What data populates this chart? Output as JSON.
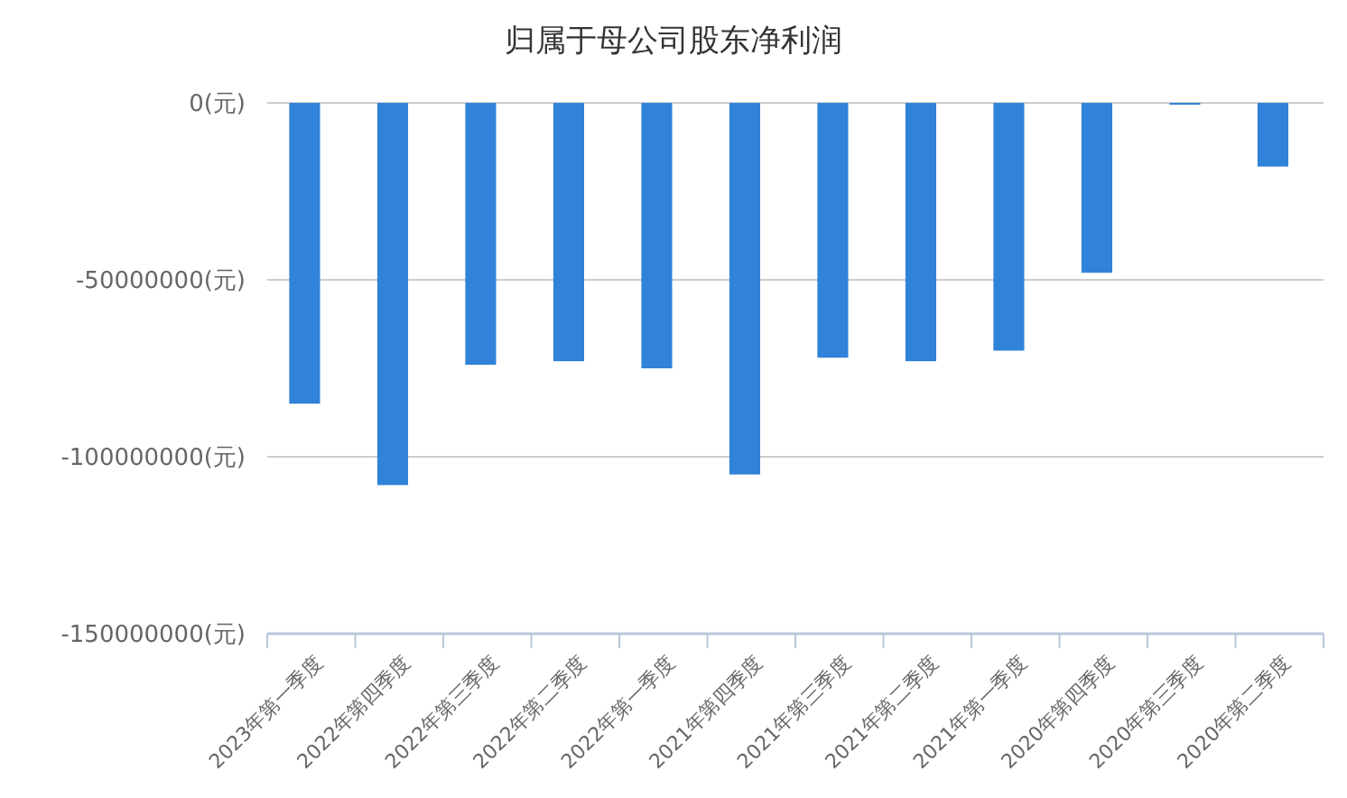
{
  "chart_data": {
    "type": "bar",
    "title": "归属于母公司股东净利润",
    "categories": [
      "2023年第一季度",
      "2022年第四季度",
      "2022年第三季度",
      "2022年第二季度",
      "2022年第一季度",
      "2021年第四季度",
      "2021年第三季度",
      "2021年第二季度",
      "2021年第一季度",
      "2020年第四季度",
      "2020年第三季度",
      "2020年第二季度"
    ],
    "values": [
      -85000000,
      -108000000,
      -74000000,
      -73000000,
      -75000000,
      -105000000,
      -72000000,
      -73000000,
      -70000000,
      -48000000,
      -500000,
      -18000000
    ],
    "color": "#3182d9",
    "ylim": [
      -150000000,
      0
    ],
    "yticks": [
      {
        "value": -150000000,
        "label": "-150000000(元)"
      },
      {
        "value": -100000000,
        "label": "-100000000(元)"
      },
      {
        "value": -50000000,
        "label": "-50000000(元)"
      },
      {
        "value": 0,
        "label": "0(元)"
      }
    ],
    "grid": "y"
  }
}
